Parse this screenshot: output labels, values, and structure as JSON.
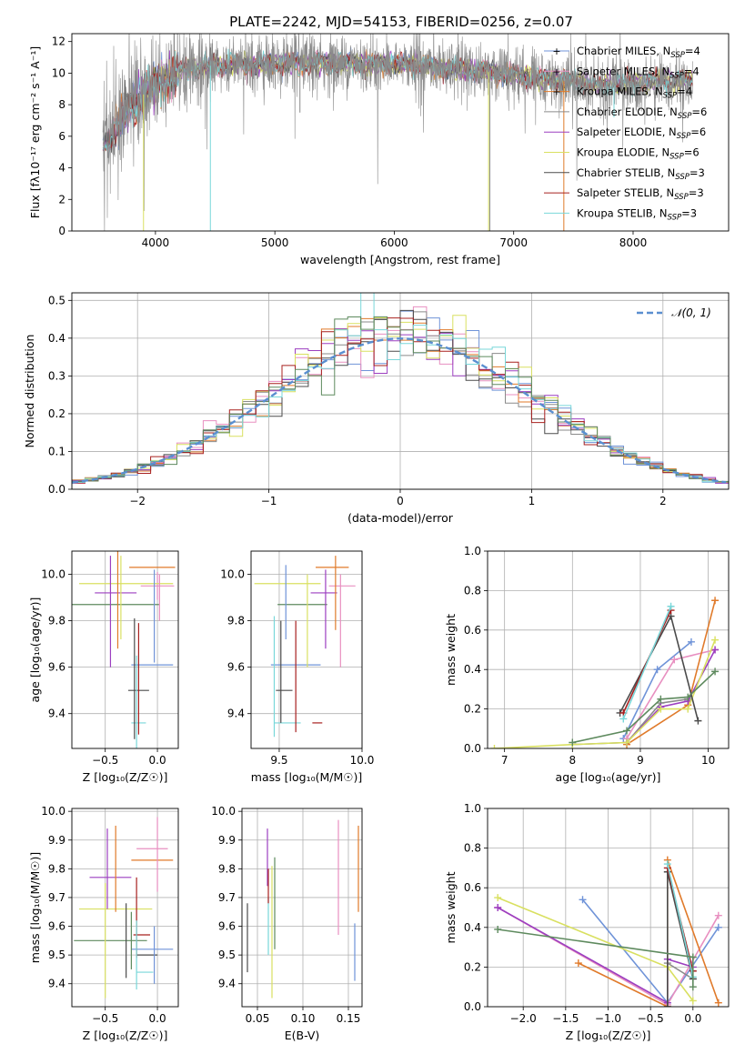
{
  "figure": {
    "title": "PLATE=2242, MJD=54153, FIBERID=0256, z=0.07"
  },
  "colors": {
    "cM": "#6f93d8",
    "sM": "#e88fc0",
    "kM": "#e07a2a",
    "cE": "#8a8a8a",
    "sE": "#9c3fc0",
    "kE": "#d9e060",
    "cS": "#4b4b4b",
    "sS": "#a8201f",
    "kS": "#79d7d9",
    "green": "#5e8a5e",
    "model": "#5a8fd0"
  },
  "legend_spec": [
    {
      "label": "Chabrier MILES, N",
      "sub": "SSP",
      "tail": "=4"
    },
    {
      "label": "Salpeter MILES, N",
      "sub": "SSP",
      "tail": "=4"
    },
    {
      "label": "Kroupa MILES, N",
      "sub": "SSP",
      "tail": "=4"
    },
    {
      "label": "Chabrier ELODIE, N",
      "sub": "SSP",
      "tail": "=6"
    },
    {
      "label": "Salpeter ELODIE, N",
      "sub": "SSP",
      "tail": "=6"
    },
    {
      "label": "Kroupa ELODIE, N",
      "sub": "SSP",
      "tail": "=6"
    },
    {
      "label": "Chabrier STELIB, N",
      "sub": "SSP",
      "tail": "=3"
    },
    {
      "label": "Salpeter STELIB, N",
      "sub": "SSP",
      "tail": "=3"
    },
    {
      "label": "Kroupa STELIB, N",
      "sub": "SSP",
      "tail": "=3"
    }
  ],
  "legend_hist": "𝒩(0, 1)",
  "chart_data": [
    {
      "id": "spectrum",
      "type": "line",
      "xlabel": "wavelength [Angstrom, rest frame]",
      "ylabel": "Flux [fλ10⁻¹⁷ erg cm⁻² s⁻¹ A⁻¹]",
      "xlim": [
        3300,
        8800
      ],
      "ylim": [
        0,
        12.5
      ],
      "xticks": [
        4000,
        5000,
        6000,
        7000,
        8000
      ],
      "yticks": [
        0,
        2,
        4,
        6,
        8,
        10,
        12
      ],
      "continuum_x": [
        3580,
        3800,
        4000,
        4200,
        4500,
        5000,
        5500,
        6000,
        6500,
        7000,
        7400,
        7800,
        8200,
        8500
      ],
      "continuum_y": [
        5.5,
        8.0,
        9.3,
        10.2,
        10.5,
        10.6,
        10.6,
        10.6,
        10.3,
        9.9,
        9.5,
        9.2,
        9.5,
        9.6
      ],
      "noise": 0.9,
      "data_range": [
        3560,
        8500
      ]
    },
    {
      "id": "residuals",
      "type": "bar",
      "xlabel": "(data-model)/error",
      "ylabel": "Normed distribution",
      "xlim": [
        -2.5,
        2.5
      ],
      "ylim": [
        0,
        0.52
      ],
      "xticks": [
        -2,
        -1,
        0,
        1,
        2
      ],
      "yticks": [
        0.0,
        0.1,
        0.2,
        0.3,
        0.4,
        0.5
      ],
      "bin_width": 0.1,
      "model": {
        "name": "𝒩(0, 1)",
        "mean": 0,
        "sigma": 1
      }
    },
    {
      "id": "age_vs_Z",
      "type": "scatter",
      "xlabel": "Z [log₁₀(Z/Z☉)]",
      "ylabel": "age  [log₁₀(age/yr)]",
      "xlim": [
        -0.82,
        0.2
      ],
      "ylim": [
        9.25,
        10.1
      ],
      "xticks": [
        -0.5,
        0.0
      ],
      "yticks": [
        9.4,
        9.6,
        9.8,
        10.0
      ],
      "points": [
        {
          "c": "kM",
          "x": -0.05,
          "y": 10.03,
          "ex": 0.22,
          "ey": 0.0
        },
        {
          "c": "sM",
          "x": 0.0,
          "y": 9.95,
          "ex": 0.16,
          "ey": 0.06
        },
        {
          "c": "kE",
          "x": -0.3,
          "y": 9.96,
          "ex": 0.45,
          "ey": 0.0
        },
        {
          "c": "sE",
          "x": -0.4,
          "y": 9.92,
          "ex": 0.2,
          "ey": 0.0
        },
        {
          "c": "green",
          "x": -0.4,
          "y": 9.87,
          "ex": 0.42,
          "ey": 0.0
        },
        {
          "c": "cM",
          "x": -0.05,
          "y": 9.61,
          "ex": 0.2,
          "ey": 0.0
        },
        {
          "c": "cS",
          "x": -0.18,
          "y": 9.5,
          "ex": 0.1,
          "ey": 0.0
        },
        {
          "c": "kS",
          "x": -0.18,
          "y": 9.36,
          "ex": 0.07,
          "ey": 0.0
        },
        {
          "c": "sE",
          "x": -0.45,
          "y": 9.84,
          "ex": 0.0,
          "ey": 0.24
        },
        {
          "c": "kM",
          "x": -0.38,
          "y": 9.89,
          "ex": 0.0,
          "ey": 0.21
        },
        {
          "c": "kE",
          "x": -0.35,
          "y": 9.9,
          "ex": 0.0,
          "ey": 0.18
        },
        {
          "c": "cM",
          "x": -0.03,
          "y": 9.82,
          "ex": 0.0,
          "ey": 0.2
        },
        {
          "c": "cS",
          "x": -0.22,
          "y": 9.55,
          "ex": 0.0,
          "ey": 0.26
        },
        {
          "c": "sS",
          "x": -0.18,
          "y": 9.55,
          "ex": 0.0,
          "ey": 0.24
        },
        {
          "c": "kS",
          "x": -0.2,
          "y": 9.45,
          "ex": 0.0,
          "ey": 0.2
        },
        {
          "c": "sM",
          "x": 0.02,
          "y": 9.9,
          "ex": 0.0,
          "ey": 0.1
        }
      ]
    },
    {
      "id": "age_vs_mass",
      "type": "scatter",
      "xlabel": "mass [log₁₀(M/M☉)]",
      "ylabel": "",
      "xlim": [
        9.33,
        10.0
      ],
      "ylim": [
        9.25,
        10.1
      ],
      "xticks": [
        9.5,
        10.0
      ],
      "yticks": [
        9.4,
        9.6,
        9.8,
        10.0
      ],
      "points": [
        {
          "c": "kM",
          "x": 9.82,
          "y": 10.03,
          "ex": 0.1,
          "ey": 0.0
        },
        {
          "c": "sM",
          "x": 9.88,
          "y": 9.95,
          "ex": 0.08,
          "ey": 0.0
        },
        {
          "c": "kE",
          "x": 9.55,
          "y": 9.96,
          "ex": 0.2,
          "ey": 0.0
        },
        {
          "c": "sE",
          "x": 9.77,
          "y": 9.92,
          "ex": 0.08,
          "ey": 0.0
        },
        {
          "c": "green",
          "x": 9.64,
          "y": 9.87,
          "ex": 0.15,
          "ey": 0.0
        },
        {
          "c": "cM",
          "x": 9.6,
          "y": 9.61,
          "ex": 0.15,
          "ey": 0.0
        },
        {
          "c": "cS",
          "x": 9.53,
          "y": 9.5,
          "ex": 0.05,
          "ey": 0.0
        },
        {
          "c": "kS",
          "x": 9.55,
          "y": 9.36,
          "ex": 0.08,
          "ey": 0.0
        },
        {
          "c": "sS",
          "x": 9.73,
          "y": 9.36,
          "ex": 0.03,
          "ey": 0.0
        },
        {
          "c": "cM",
          "x": 9.54,
          "y": 9.88,
          "ex": 0.0,
          "ey": 0.16
        },
        {
          "c": "kM",
          "x": 9.84,
          "y": 9.92,
          "ex": 0.0,
          "ey": 0.16
        },
        {
          "c": "sM",
          "x": 9.87,
          "y": 9.8,
          "ex": 0.0,
          "ey": 0.2
        },
        {
          "c": "kE",
          "x": 9.67,
          "y": 9.8,
          "ex": 0.0,
          "ey": 0.2
        },
        {
          "c": "kS",
          "x": 9.47,
          "y": 9.56,
          "ex": 0.0,
          "ey": 0.26
        },
        {
          "c": "cS",
          "x": 9.51,
          "y": 9.58,
          "ex": 0.0,
          "ey": 0.22
        },
        {
          "c": "sS",
          "x": 9.6,
          "y": 9.56,
          "ex": 0.0,
          "ey": 0.24
        },
        {
          "c": "sE",
          "x": 9.78,
          "y": 9.85,
          "ex": 0.0,
          "ey": 0.17
        }
      ]
    },
    {
      "id": "mw_vs_age",
      "type": "line",
      "xlabel": "age  [log₁₀(age/yr)]",
      "ylabel": "mass weight",
      "xlim": [
        6.75,
        10.3
      ],
      "ylim": [
        0,
        1.0
      ],
      "xticks": [
        7,
        8,
        9,
        10
      ],
      "yticks": [
        0.0,
        0.2,
        0.4,
        0.6,
        0.8,
        1.0
      ],
      "series": [
        {
          "c": "cM",
          "x": [
            8.75,
            9.25,
            9.75
          ],
          "y": [
            0.05,
            0.4,
            0.54
          ]
        },
        {
          "c": "sM",
          "x": [
            8.8,
            9.5,
            10.1
          ],
          "y": [
            0.05,
            0.45,
            0.5
          ]
        },
        {
          "c": "kM",
          "x": [
            8.8,
            9.7,
            10.1
          ],
          "y": [
            0.02,
            0.22,
            0.75
          ]
        },
        {
          "c": "cE",
          "x": [
            8.0,
            8.8,
            9.3,
            9.7
          ],
          "y": [
            0.02,
            0.03,
            0.23,
            0.25
          ]
        },
        {
          "c": "sE",
          "x": [
            8.8,
            9.3,
            9.7,
            10.1
          ],
          "y": [
            0.03,
            0.21,
            0.24,
            0.5
          ]
        },
        {
          "c": "kE",
          "x": [
            6.85,
            8.0,
            8.8,
            9.3,
            9.7,
            10.1
          ],
          "y": [
            0.0,
            0.02,
            0.03,
            0.2,
            0.2,
            0.55
          ]
        },
        {
          "c": "cS",
          "x": [
            8.7,
            9.45,
            9.85
          ],
          "y": [
            0.18,
            0.67,
            0.14
          ]
        },
        {
          "c": "sS",
          "x": [
            8.75,
            9.45
          ],
          "y": [
            0.18,
            0.7
          ]
        },
        {
          "c": "kS",
          "x": [
            8.75,
            9.45
          ],
          "y": [
            0.15,
            0.72
          ]
        },
        {
          "c": "green",
          "x": [
            8.0,
            8.8,
            9.3,
            9.7,
            10.1
          ],
          "y": [
            0.03,
            0.09,
            0.25,
            0.26,
            0.39
          ]
        }
      ]
    },
    {
      "id": "mass_vs_Z",
      "type": "scatter",
      "xlabel": "Z [log₁₀(Z/Z☉)]",
      "ylabel": "mass [log₁₀(M/M☉)]",
      "xlim": [
        -0.82,
        0.2
      ],
      "ylim": [
        9.32,
        10.01
      ],
      "xticks": [
        -0.5,
        0.0
      ],
      "yticks": [
        9.4,
        9.5,
        9.6,
        9.7,
        9.8,
        9.9,
        10.0
      ],
      "points": [
        {
          "c": "sM",
          "x": -0.05,
          "y": 9.87,
          "ex": 0.15,
          "ey": 0.0
        },
        {
          "c": "kM",
          "x": -0.05,
          "y": 9.83,
          "ex": 0.2,
          "ey": 0.0
        },
        {
          "c": "sE",
          "x": -0.45,
          "y": 9.77,
          "ex": 0.2,
          "ey": 0.0
        },
        {
          "c": "kE",
          "x": -0.4,
          "y": 9.66,
          "ex": 0.35,
          "ey": 0.0
        },
        {
          "c": "sS",
          "x": -0.15,
          "y": 9.57,
          "ex": 0.08,
          "ey": 0.0
        },
        {
          "c": "green",
          "x": -0.45,
          "y": 9.55,
          "ex": 0.35,
          "ey": 0.0
        },
        {
          "c": "cM",
          "x": -0.05,
          "y": 9.52,
          "ex": 0.2,
          "ey": 0.0
        },
        {
          "c": "cS",
          "x": -0.1,
          "y": 9.5,
          "ex": 0.1,
          "ey": 0.0
        },
        {
          "c": "kS",
          "x": -0.12,
          "y": 9.44,
          "ex": 0.08,
          "ey": 0.0
        },
        {
          "c": "sE",
          "x": -0.48,
          "y": 9.8,
          "ex": 0.0,
          "ey": 0.14
        },
        {
          "c": "kM",
          "x": -0.4,
          "y": 9.8,
          "ex": 0.0,
          "ey": 0.15
        },
        {
          "c": "kE",
          "x": -0.5,
          "y": 9.55,
          "ex": 0.0,
          "ey": 0.2
        },
        {
          "c": "sM",
          "x": 0.0,
          "y": 9.85,
          "ex": 0.0,
          "ey": 0.13
        },
        {
          "c": "cM",
          "x": -0.03,
          "y": 9.5,
          "ex": 0.0,
          "ey": 0.1
        },
        {
          "c": "cS",
          "x": -0.3,
          "y": 9.55,
          "ex": 0.0,
          "ey": 0.13
        },
        {
          "c": "sS",
          "x": -0.2,
          "y": 9.63,
          "ex": 0.0,
          "ey": 0.14
        },
        {
          "c": "kS",
          "x": -0.2,
          "y": 9.5,
          "ex": 0.0,
          "ey": 0.12
        },
        {
          "c": "green",
          "x": -0.25,
          "y": 9.55,
          "ex": 0.0,
          "ey": 0.1
        }
      ]
    },
    {
      "id": "mass_vs_ebv",
      "type": "scatter",
      "xlabel": "E(B-V)",
      "ylabel": "",
      "xlim": [
        0.033,
        0.165
      ],
      "ylim": [
        9.32,
        10.01
      ],
      "xticks": [
        0.05,
        0.1,
        0.15
      ],
      "yticks": [
        9.4,
        9.5,
        9.6,
        9.7,
        9.8,
        9.9,
        10.0
      ],
      "points": [
        {
          "c": "cS",
          "x": 0.039,
          "y": 9.56,
          "ex": 0.0,
          "ey": 0.12
        },
        {
          "c": "sE",
          "x": 0.061,
          "y": 9.84,
          "ex": 0.0,
          "ey": 0.1
        },
        {
          "c": "kS",
          "x": 0.062,
          "y": 9.6,
          "ex": 0.0,
          "ey": 0.1
        },
        {
          "c": "sS",
          "x": 0.062,
          "y": 9.74,
          "ex": 0.0,
          "ey": 0.06
        },
        {
          "c": "kE",
          "x": 0.066,
          "y": 9.58,
          "ex": 0.0,
          "ey": 0.23
        },
        {
          "c": "green",
          "x": 0.069,
          "y": 9.68,
          "ex": 0.0,
          "ey": 0.16
        },
        {
          "c": "sM",
          "x": 0.139,
          "y": 9.77,
          "ex": 0.0,
          "ey": 0.2
        },
        {
          "c": "kM",
          "x": 0.161,
          "y": 9.8,
          "ex": 0.0,
          "ey": 0.15
        },
        {
          "c": "cM",
          "x": 0.157,
          "y": 9.51,
          "ex": 0.0,
          "ey": 0.1
        }
      ]
    },
    {
      "id": "mw_vs_Z",
      "type": "line",
      "xlabel": "Z [log₁₀(Z/Z☉)]",
      "ylabel": "mass weight",
      "xlim": [
        -2.42,
        0.42
      ],
      "ylim": [
        0,
        1.0
      ],
      "xticks": [
        -2.0,
        -1.5,
        -1.0,
        -0.5,
        0.0
      ],
      "yticks": [
        0.0,
        0.2,
        0.4,
        0.6,
        0.8,
        1.0
      ],
      "series": [
        {
          "c": "cM",
          "x": [
            -1.3,
            -0.3,
            0.3
          ],
          "y": [
            0.54,
            0.02,
            0.4
          ]
        },
        {
          "c": "sM",
          "x": [
            -2.3,
            -0.3,
            0.3
          ],
          "y": [
            0.5,
            0.01,
            0.46
          ]
        },
        {
          "c": "kM",
          "x": [
            -1.35,
            -0.3,
            -0.3,
            0.3
          ],
          "y": [
            0.22,
            0.0,
            0.74,
            0.02
          ]
        },
        {
          "c": "cE",
          "x": [
            -0.3,
            0.0
          ],
          "y": [
            0.22,
            0.14
          ]
        },
        {
          "c": "sE",
          "x": [
            -2.3,
            -0.3,
            -0.3,
            0.0
          ],
          "y": [
            0.5,
            0.02,
            0.24,
            0.2
          ]
        },
        {
          "c": "kE",
          "x": [
            -2.3,
            -0.3,
            0.0
          ],
          "y": [
            0.55,
            0.2,
            0.03
          ]
        },
        {
          "c": "cS",
          "x": [
            -0.3,
            -0.3,
            0.0
          ],
          "y": [
            0.0,
            0.68,
            0.14
          ]
        },
        {
          "c": "sS",
          "x": [
            -0.3,
            0.0
          ],
          "y": [
            0.7,
            0.18
          ]
        },
        {
          "c": "kS",
          "x": [
            -0.3,
            0.0
          ],
          "y": [
            0.72,
            0.15
          ]
        },
        {
          "c": "green",
          "x": [
            -2.3,
            0.0,
            0.0
          ],
          "y": [
            0.39,
            0.25,
            0.1
          ]
        }
      ]
    }
  ]
}
